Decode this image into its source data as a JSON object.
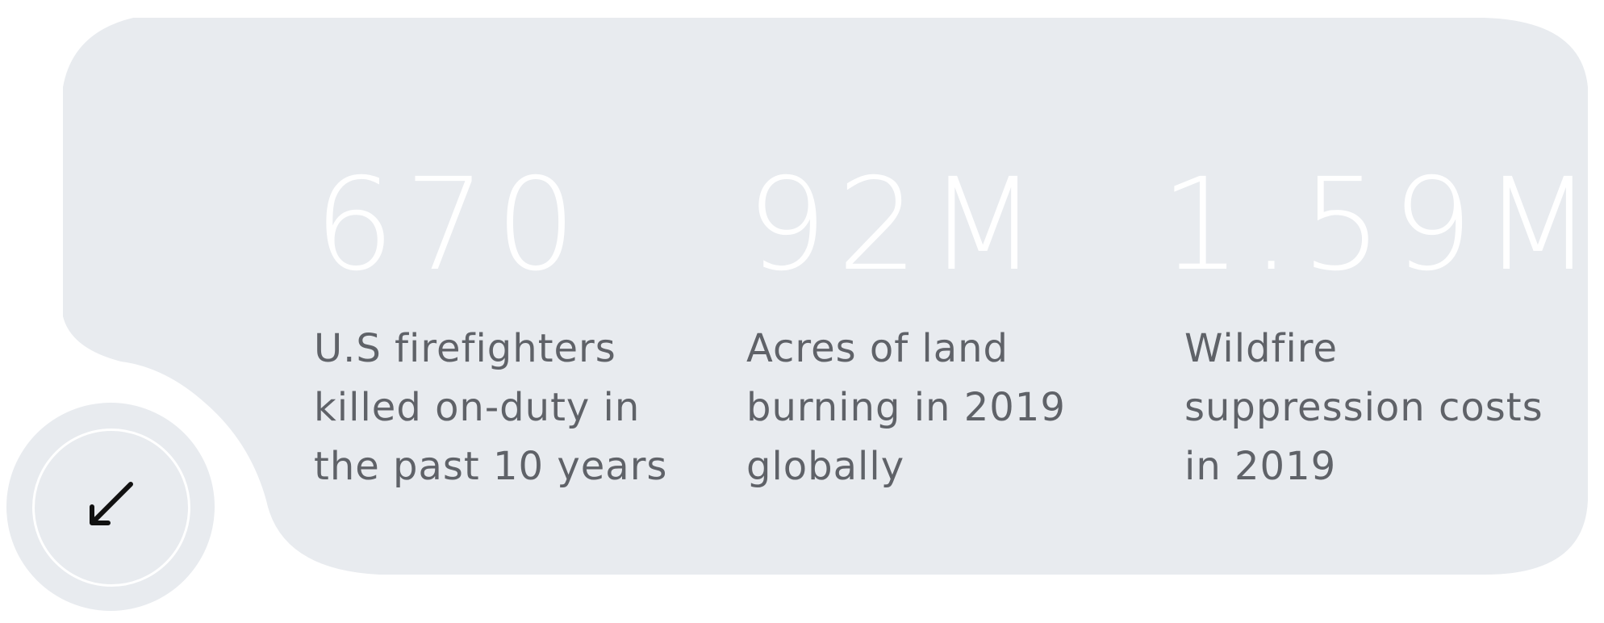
{
  "colors": {
    "card_background": "#e8ebef",
    "stat_value": "#ffffff",
    "stat_label": "#5f6268",
    "ring": "#ffffff",
    "arrow": "#111111"
  },
  "stats": [
    {
      "value": "670",
      "label_lines": [
        "U.S firefighters",
        "killed on-duty in",
        "the past 10 years"
      ]
    },
    {
      "value": "92M",
      "label_lines": [
        "Acres of land",
        "burning in 2019",
        "globally"
      ]
    },
    {
      "value": "1.59M",
      "label_lines": [
        "Wildfire",
        "suppression costs",
        "in 2019"
      ]
    }
  ],
  "scroll_button": {
    "icon": "arrow-down-left-icon"
  }
}
